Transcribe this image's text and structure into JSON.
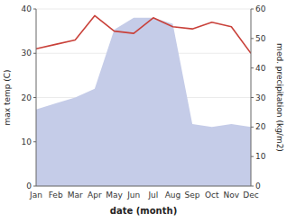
{
  "chart_data": {
    "type": "line",
    "xlabel": "date (month)",
    "ylabel": "max temp (C)",
    "y2label": "med. precipitation (kg/m2)",
    "categories": [
      "Jan",
      "Feb",
      "Mar",
      "Apr",
      "May",
      "Jun",
      "Jul",
      "Aug",
      "Sep",
      "Oct",
      "Nov",
      "Dec"
    ],
    "series": [
      {
        "type": "area",
        "axis": "y2",
        "color": "#c5cce8",
        "values": [
          26,
          28,
          30,
          33,
          53,
          57,
          57,
          55,
          21,
          20,
          21,
          20
        ]
      },
      {
        "type": "line",
        "color": "#c9413a",
        "values": [
          31,
          32,
          33,
          38.5,
          35,
          34.5,
          38,
          36,
          35.5,
          37,
          36,
          30
        ]
      }
    ],
    "ylim": [
      0,
      40
    ],
    "yticks": [
      0,
      10,
      20,
      30,
      40
    ],
    "y2lim": [
      0,
      60
    ],
    "y2ticks": [
      0,
      10,
      20,
      30,
      40,
      50,
      60
    ],
    "grid": true
  }
}
